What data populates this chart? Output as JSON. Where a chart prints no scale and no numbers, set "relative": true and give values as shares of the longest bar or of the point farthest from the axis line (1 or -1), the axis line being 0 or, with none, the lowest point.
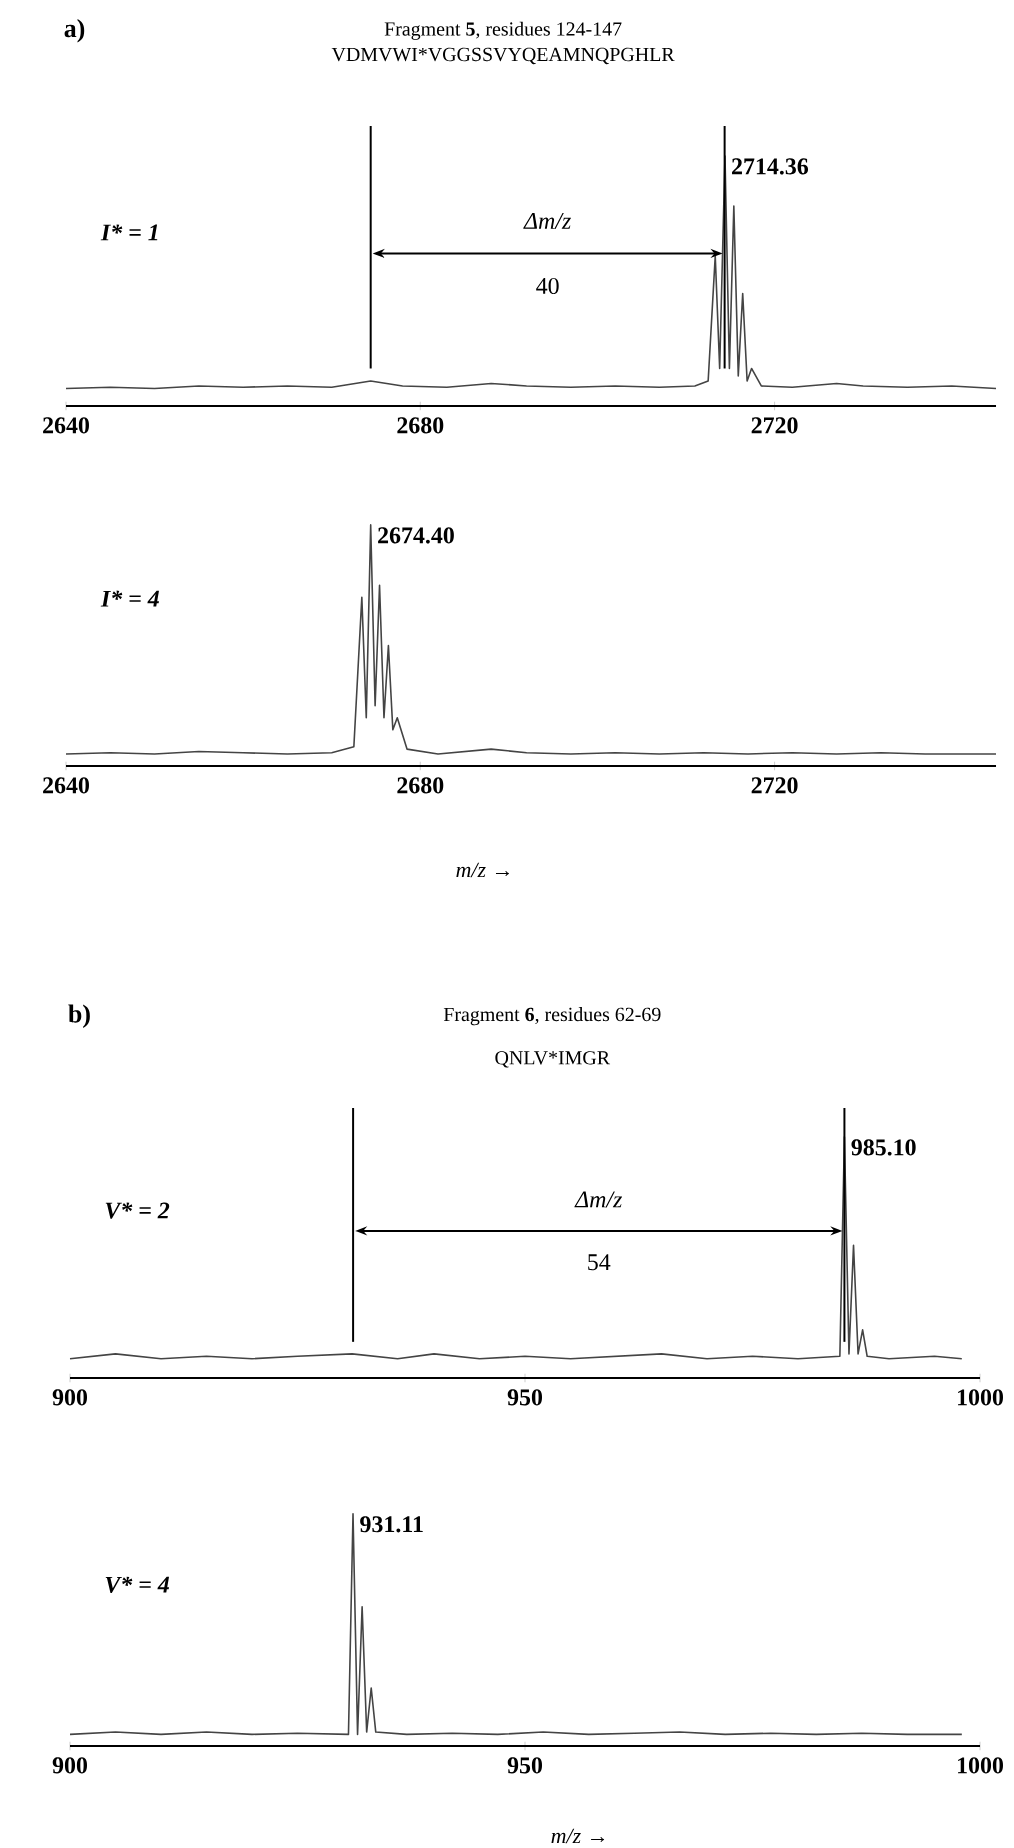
{
  "chart_data": [
    {
      "type": "line",
      "title": "Fragment **5**, residues 124-147",
      "subtitle": "VDMVWI*VGGSSVYQEAMNQPGHLR",
      "relative": true,
      "xlim": [
        2640,
        2745
      ],
      "xticks": [
        2640,
        2680,
        2720
      ],
      "annotations": [
        "a)",
        {
          "text": "2714.36",
          "x": 2714.36,
          "y": 1
        },
        "Δm/z",
        "40"
      ],
      "ref_lines": [
        {
          "axis": "x",
          "value": 2674.4
        },
        {
          "axis": "x",
          "value": 2714.36
        }
      ],
      "series": [
        {
          "name": "I* = 1",
          "color": "#444444",
          "x": [
            2640,
            2645,
            2650,
            2655,
            2660,
            2665,
            2670,
            2674.4,
            2678,
            2683,
            2688,
            2692,
            2697,
            2702,
            2707,
            2711,
            2712.5,
            2713.3,
            2713.8,
            2714.4,
            2714.9,
            2715.4,
            2715.9,
            2716.4,
            2716.9,
            2717.4,
            2718.5,
            2722,
            2727,
            2730,
            2735,
            2740,
            2745
          ],
          "values": [
            0.07,
            0.075,
            0.07,
            0.08,
            0.075,
            0.08,
            0.075,
            0.1,
            0.08,
            0.075,
            0.09,
            0.08,
            0.075,
            0.08,
            0.075,
            0.08,
            0.1,
            0.6,
            0.15,
            1.0,
            0.15,
            0.8,
            0.12,
            0.45,
            0.1,
            0.15,
            0.08,
            0.075,
            0.09,
            0.08,
            0.075,
            0.08,
            0.07
          ]
        }
      ]
    },
    {
      "type": "line",
      "xlabel": "*m/z* →",
      "relative": true,
      "xlim": [
        2640,
        2745
      ],
      "xticks": [
        2640,
        2680,
        2720
      ],
      "annotations": [
        {
          "text": "2674.40",
          "x": 2674.4,
          "y": 1
        }
      ],
      "series": [
        {
          "name": "I* = 4",
          "color": "#444444",
          "x": [
            2640,
            2645,
            2650,
            2655,
            2660,
            2665,
            2670,
            2672.5,
            2673.4,
            2673.9,
            2674.4,
            2674.9,
            2675.4,
            2675.9,
            2676.4,
            2676.9,
            2677.4,
            2678.5,
            2682,
            2688,
            2692,
            2697,
            2702,
            2707,
            2712,
            2717,
            2722,
            2727,
            2732,
            2737,
            2745
          ],
          "values": [
            0.05,
            0.055,
            0.05,
            0.06,
            0.055,
            0.05,
            0.055,
            0.08,
            0.7,
            0.2,
            1.0,
            0.25,
            0.75,
            0.2,
            0.5,
            0.15,
            0.2,
            0.07,
            0.05,
            0.07,
            0.055,
            0.05,
            0.055,
            0.05,
            0.055,
            0.05,
            0.055,
            0.05,
            0.055,
            0.05,
            0.05
          ]
        }
      ]
    },
    {
      "type": "line",
      "title": "Fragment **6**, residues 62-69",
      "subtitle": "QNLV*IMGR",
      "relative": true,
      "xlim": [
        900,
        1000
      ],
      "xticks": [
        900,
        950,
        1000
      ],
      "annotations": [
        "b)",
        {
          "text": "985.10",
          "x": 985.1,
          "y": 1
        },
        "Δm/z",
        "54"
      ],
      "ref_lines": [
        {
          "axis": "x",
          "value": 931.11
        },
        {
          "axis": "x",
          "value": 985.1
        }
      ],
      "series": [
        {
          "name": "V* = 2",
          "color": "#444444",
          "x": [
            900,
            905,
            910,
            915,
            920,
            925,
            931,
            936,
            940,
            945,
            950,
            955,
            960,
            965,
            970,
            975,
            980,
            984.6,
            985.1,
            985.6,
            986.1,
            986.6,
            987.1,
            987.6,
            990,
            995,
            998
          ],
          "values": [
            0.08,
            0.1,
            0.08,
            0.09,
            0.08,
            0.09,
            0.1,
            0.08,
            0.1,
            0.08,
            0.09,
            0.08,
            0.09,
            0.1,
            0.08,
            0.09,
            0.08,
            0.09,
            1.0,
            0.1,
            0.55,
            0.1,
            0.2,
            0.09,
            0.08,
            0.09,
            0.08
          ]
        }
      ]
    },
    {
      "type": "line",
      "xlabel": "*m/z* →",
      "relative": true,
      "xlim": [
        900,
        1000
      ],
      "xticks": [
        900,
        950,
        1000
      ],
      "annotations": [
        {
          "text": "931.11",
          "x": 931.11,
          "y": 1
        }
      ],
      "series": [
        {
          "name": "V* = 4",
          "color": "#444444",
          "x": [
            900,
            905,
            910,
            915,
            920,
            925,
            930.6,
            931.1,
            931.6,
            932.1,
            932.6,
            933.1,
            933.6,
            937,
            942,
            947,
            952,
            957,
            962,
            967,
            972,
            977,
            982,
            987,
            992,
            998
          ],
          "values": [
            0.05,
            0.06,
            0.05,
            0.06,
            0.05,
            0.055,
            0.05,
            1.0,
            0.05,
            0.6,
            0.06,
            0.25,
            0.06,
            0.05,
            0.055,
            0.05,
            0.06,
            0.05,
            0.055,
            0.06,
            0.05,
            0.055,
            0.05,
            0.055,
            0.05,
            0.05
          ]
        }
      ]
    }
  ]
}
